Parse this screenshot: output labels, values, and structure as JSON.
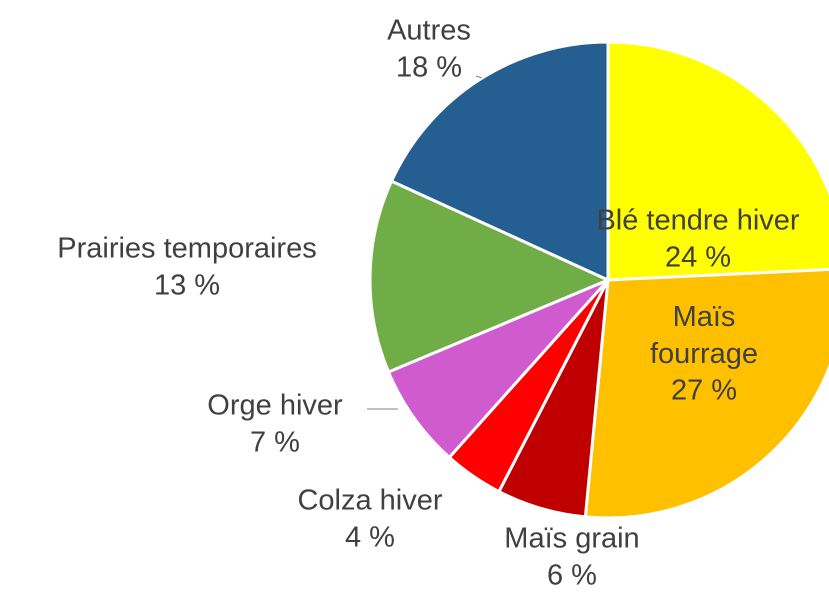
{
  "chart_data": {
    "type": "pie",
    "categories": [
      "Blé tendre hiver",
      "Maïs fourrage",
      "Maïs grain",
      "Colza hiver",
      "Orge hiver",
      "Prairies temporaires",
      "Autres"
    ],
    "values": [
      24,
      27,
      6,
      4,
      7,
      13,
      18
    ],
    "value_labels": [
      "24 %",
      "27 %",
      "6 %",
      "4 %",
      "7 %",
      "13 %",
      "18 %"
    ],
    "colors": [
      "#ffff00",
      "#ffc000",
      "#c00000",
      "#ff0000",
      "#cf5bcf",
      "#70ad47",
      "#255e91"
    ]
  }
}
